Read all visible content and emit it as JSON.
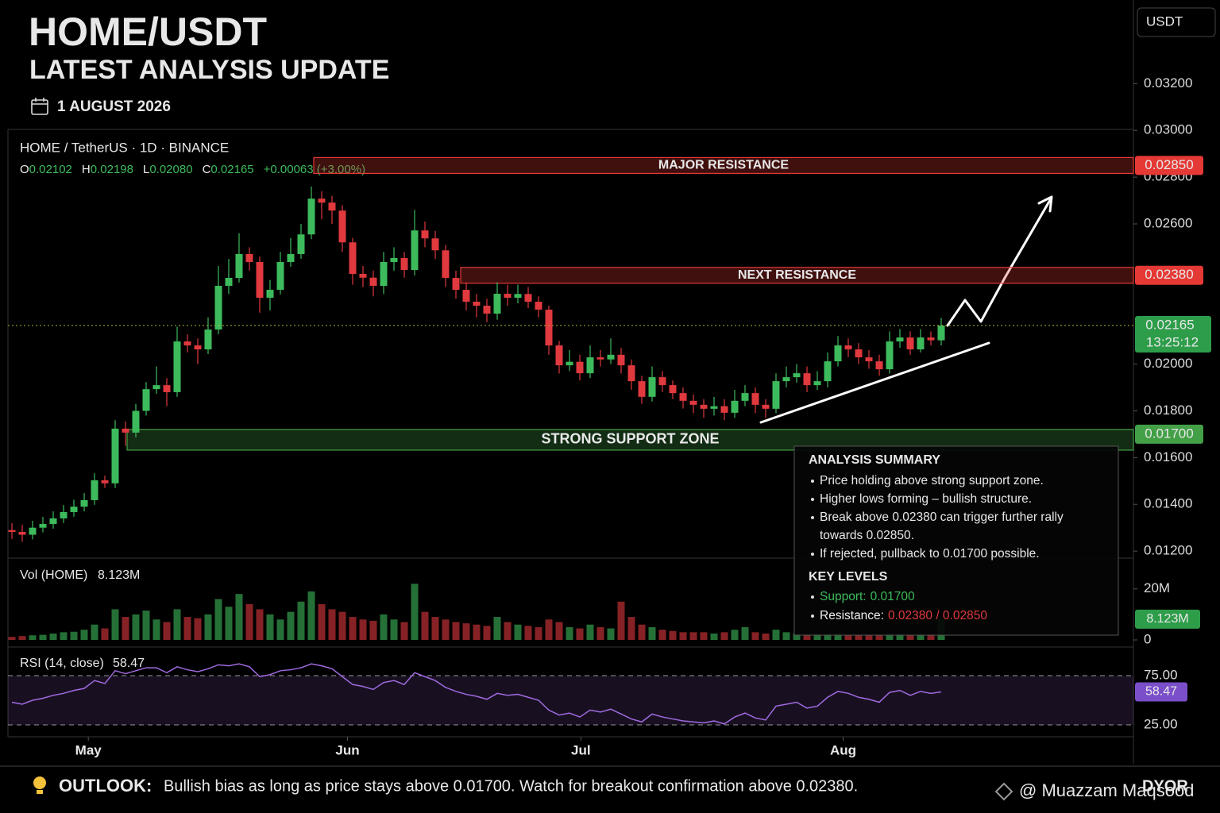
{
  "header": {
    "title": "HOME/USDT",
    "subtitle": "LATEST ANALYSIS UPDATE",
    "date": "1 AUGUST 2026"
  },
  "chart_data": {
    "type": "candlestick",
    "currency": "USDT",
    "symbol": "HOME / TetherUS · 1D · BINANCE",
    "ohlc_legend": [
      {
        "key": "O",
        "value": "0.02102"
      },
      {
        "key": "H",
        "value": "0.02198"
      },
      {
        "key": "L",
        "value": "0.02080"
      },
      {
        "key": "C",
        "value": "0.02165"
      }
    ],
    "change": "+0.00063 (+3.00%)",
    "countdown": "13:25:12",
    "up_color": "#3dbb5c",
    "down_color": "#e0393e",
    "candles": {
      "open": [
        0.0129,
        0.01282,
        0.0127,
        0.013,
        0.01316,
        0.0134,
        0.01367,
        0.0139,
        0.01418,
        0.01503,
        0.0149,
        0.01724,
        0.01707,
        0.018,
        0.01893,
        0.0191,
        0.0188,
        0.02097,
        0.0208,
        0.02063,
        0.02148,
        0.02335,
        0.02369,
        0.02471,
        0.02437,
        0.02284,
        0.02318,
        0.02437,
        0.02471,
        0.02555,
        0.02708,
        0.02691,
        0.02657,
        0.02521,
        0.02386,
        0.0237,
        0.02335,
        0.02437,
        0.02454,
        0.02403,
        0.02572,
        0.02538,
        0.02487,
        0.02369,
        0.02318,
        0.02267,
        0.0225,
        0.02216,
        0.02301,
        0.02284,
        0.023,
        0.02267,
        0.02233,
        0.0208,
        0.01995,
        0.0201,
        0.01961,
        0.02029,
        0.0202,
        0.0204,
        0.01995,
        0.01927,
        0.0186,
        0.01944,
        0.0191,
        0.01876,
        0.01843,
        0.01826,
        0.01809,
        0.0182,
        0.01792,
        0.01843,
        0.01876,
        0.01826,
        0.01809,
        0.01927,
        0.01944,
        0.01961,
        0.0191,
        0.01927,
        0.02012,
        0.0208,
        0.02063,
        0.02029,
        0.02012,
        0.01978,
        0.02097,
        0.02114,
        0.02063,
        0.02114,
        0.02102
      ],
      "high": [
        0.0132,
        0.01312,
        0.0133,
        0.01346,
        0.0137,
        0.01397,
        0.0142,
        0.01448,
        0.01533,
        0.01523,
        0.0176,
        0.01754,
        0.0183,
        0.01923,
        0.0199,
        0.0194,
        0.0216,
        0.02127,
        0.0211,
        0.022,
        0.0242,
        0.0245,
        0.0256,
        0.025,
        0.0246,
        0.0236,
        0.0248,
        0.0254,
        0.026,
        0.0276,
        0.0274,
        0.0272,
        0.0268,
        0.0254,
        0.0242,
        0.024,
        0.0248,
        0.025,
        0.0248,
        0.0266,
        0.0261,
        0.0257,
        0.0251,
        0.024,
        0.0235,
        0.023,
        0.0228,
        0.0235,
        0.0234,
        0.0234,
        0.0233,
        0.0229,
        0.0225,
        0.021,
        0.0206,
        0.0204,
        0.0208,
        0.0206,
        0.0211,
        0.0207,
        0.0202,
        0.0195,
        0.0199,
        0.0197,
        0.0193,
        0.019,
        0.0187,
        0.0185,
        0.0186,
        0.0185,
        0.0189,
        0.0191,
        0.019,
        0.0185,
        0.0196,
        0.0199,
        0.02,
        0.0199,
        0.0197,
        0.0205,
        0.0212,
        0.0211,
        0.0209,
        0.0206,
        0.0204,
        0.0214,
        0.0215,
        0.0214,
        0.0215,
        0.0214,
        0.02198
      ],
      "low": [
        0.01252,
        0.0124,
        0.0125,
        0.0128,
        0.01296,
        0.0132,
        0.01347,
        0.0137,
        0.01398,
        0.0147,
        0.0147,
        0.0165,
        0.01687,
        0.0178,
        0.01873,
        0.0182,
        0.0186,
        0.0205,
        0.02,
        0.02043,
        0.02128,
        0.023,
        0.02349,
        0.024,
        0.0222,
        0.0223,
        0.02298,
        0.02417,
        0.02451,
        0.02535,
        0.0262,
        0.026,
        0.0248,
        0.0234,
        0.0233,
        0.0229,
        0.023,
        0.024,
        0.0237,
        0.0238,
        0.025,
        0.0245,
        0.0233,
        0.0228,
        0.0223,
        0.022,
        0.0218,
        0.0219,
        0.0225,
        0.0226,
        0.0224,
        0.022,
        0.0204,
        0.0196,
        0.0197,
        0.0193,
        0.0194,
        0.0199,
        0.02,
        0.0196,
        0.0189,
        0.0183,
        0.0184,
        0.0188,
        0.0185,
        0.0181,
        0.0179,
        0.0177,
        0.0178,
        0.0176,
        0.0177,
        0.0182,
        0.0179,
        0.0177,
        0.0179,
        0.019,
        0.0192,
        0.0188,
        0.0189,
        0.019,
        0.0199,
        0.0203,
        0.02,
        0.0198,
        0.0195,
        0.0196,
        0.0207,
        0.0204,
        0.0205,
        0.0208,
        0.0208
      ],
      "close": [
        0.01282,
        0.0127,
        0.013,
        0.01316,
        0.0134,
        0.01367,
        0.0139,
        0.01418,
        0.01503,
        0.0149,
        0.01724,
        0.01707,
        0.018,
        0.01893,
        0.0191,
        0.0188,
        0.02097,
        0.0208,
        0.02063,
        0.02148,
        0.02335,
        0.02369,
        0.02471,
        0.02437,
        0.02284,
        0.02318,
        0.02437,
        0.02471,
        0.02555,
        0.02708,
        0.02691,
        0.02657,
        0.02521,
        0.02386,
        0.0237,
        0.02335,
        0.02437,
        0.02454,
        0.02403,
        0.02572,
        0.02538,
        0.02487,
        0.02369,
        0.02318,
        0.02267,
        0.0225,
        0.02216,
        0.02301,
        0.02284,
        0.023,
        0.02267,
        0.02233,
        0.0208,
        0.01995,
        0.0201,
        0.01961,
        0.02029,
        0.0202,
        0.0204,
        0.01995,
        0.01927,
        0.0186,
        0.01944,
        0.0191,
        0.01876,
        0.01843,
        0.01826,
        0.01809,
        0.0182,
        0.01792,
        0.01843,
        0.01876,
        0.01826,
        0.01809,
        0.01927,
        0.01944,
        0.01961,
        0.0191,
        0.01927,
        0.02012,
        0.0208,
        0.02063,
        0.02029,
        0.02012,
        0.01978,
        0.02097,
        0.02114,
        0.02063,
        0.02114,
        0.02102,
        0.02165
      ]
    },
    "ylim": [
      0.0118,
      0.0331
    ],
    "yticks": [
      {
        "value": 0.032,
        "label": "0.03200"
      },
      {
        "value": 0.03,
        "label": "0.03000"
      },
      {
        "value": 0.028,
        "label": "0.02800"
      },
      {
        "value": 0.026,
        "label": "0.02600"
      },
      {
        "value": 0.02,
        "label": "0.02000"
      },
      {
        "value": 0.018,
        "label": "0.01800"
      },
      {
        "value": 0.016,
        "label": "0.01600"
      },
      {
        "value": 0.014,
        "label": "0.01400"
      },
      {
        "value": 0.012,
        "label": "0.01200"
      }
    ],
    "xticks": [
      {
        "value": 7.4,
        "label": "May"
      },
      {
        "value": 32.5,
        "label": "Jun"
      },
      {
        "value": 55.1,
        "label": "Jul"
      },
      {
        "value": 80.5,
        "label": "Aug"
      }
    ],
    "levels": [
      {
        "name": "MAJOR RESISTANCE",
        "value": 0.0285,
        "label": "0.02850",
        "color": "#e53935"
      },
      {
        "name": "NEXT RESISTANCE",
        "value": 0.0238,
        "label": "0.02380",
        "color": "#e53935"
      },
      {
        "name": "STRONG SUPPORT ZONE",
        "value": 0.017,
        "label": "0.01700",
        "color": "#43a047"
      }
    ],
    "volume": {
      "title": "Vol (HOME)",
      "current_label": "8.123M",
      "ylim": [
        0,
        28
      ],
      "yticks": [
        {
          "value": 20,
          "label": "20M"
        },
        0
      ],
      "values": [
        1.2,
        1.5,
        1.8,
        2.0,
        2.5,
        3.0,
        3.2,
        4.0,
        6.0,
        4.5,
        12,
        9,
        10,
        11.5,
        8,
        7,
        12,
        9,
        8.5,
        10,
        16,
        13,
        18,
        14,
        12,
        10,
        8,
        11,
        15,
        19,
        14,
        12,
        11,
        9,
        8,
        7.5,
        10,
        8,
        7,
        22,
        11,
        9,
        8,
        7,
        6.5,
        6,
        5.5,
        9,
        7,
        6,
        5.5,
        5,
        8,
        7,
        5,
        4.5,
        6,
        5,
        4.5,
        15,
        9,
        6,
        5,
        4,
        3.5,
        3,
        3,
        3,
        2.5,
        3,
        4,
        5,
        3,
        2.5,
        4,
        3,
        2.5,
        2.5,
        2.5,
        2.5,
        2.5,
        2,
        2,
        2,
        2,
        2.5,
        2.5,
        2,
        2.5,
        2.5,
        8.123
      ]
    },
    "rsi": {
      "title": "RSI (14, close)",
      "color": "#a06ae0",
      "ylim": [
        10,
        100
      ],
      "yticks": [
        {
          "value": 75,
          "label": "75.00"
        },
        {
          "value": 25,
          "label": "25.00"
        }
      ],
      "values": [
        48,
        46,
        50,
        52,
        55,
        57,
        60,
        62,
        70,
        67,
        80,
        77,
        80,
        83,
        83,
        78,
        84,
        81,
        79,
        82,
        86,
        85,
        87,
        84,
        74,
        76,
        80,
        81,
        83,
        87,
        85,
        82,
        74,
        66,
        64,
        61,
        68,
        70,
        66,
        78,
        74,
        70,
        63,
        59,
        56,
        54,
        51,
        57,
        55,
        56,
        53,
        50,
        40,
        35,
        37,
        33,
        40,
        38,
        41,
        36,
        31,
        28,
        36,
        33,
        31,
        29,
        28,
        27,
        29,
        26,
        33,
        37,
        32,
        30,
        44,
        46,
        48,
        42,
        44,
        53,
        59,
        57,
        53,
        51,
        48,
        58,
        60,
        55,
        59,
        57,
        58.47
      ]
    }
  },
  "summary": {
    "title": "ANALYSIS SUMMARY",
    "bullets": [
      [
        "Price holding above strong support zone."
      ],
      [
        "Higher lows forming – bullish structure."
      ],
      [
        "Break above 0.02380 can trigger further rally",
        "towards 0.02850."
      ],
      [
        "If rejected, pullback to 0.01700 possible."
      ]
    ],
    "key_title": "KEY LEVELS",
    "key_levels": [
      {
        "label": "Support:",
        "value": "0.01700"
      },
      {
        "label": "Resistance:",
        "value": "0.02380 / 0.02850"
      }
    ]
  },
  "outlook": {
    "label": "OUTLOOK:",
    "text": "Bullish bias as long as price stays above 0.01700. Watch for breakout confirmation above 0.02380."
  },
  "disclaimer": "DYOR",
  "watermark": "@ Muazzam Maqsood"
}
